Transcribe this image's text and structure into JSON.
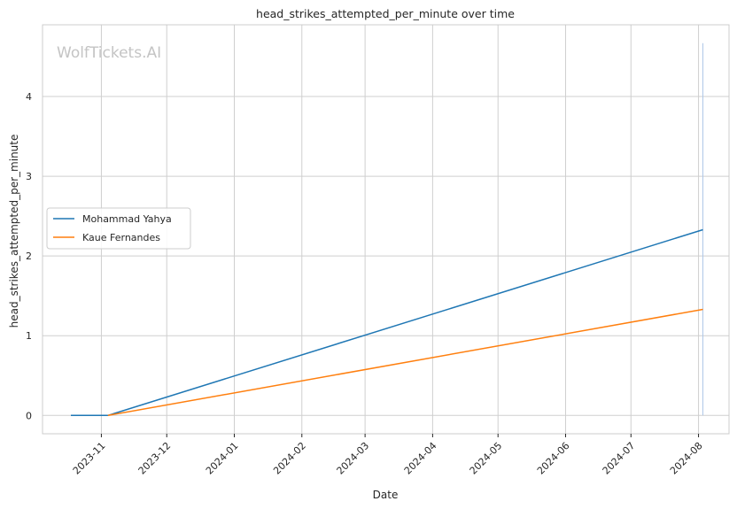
{
  "chart_data": {
    "type": "line",
    "title": "head_strikes_attempted_per_minute over time",
    "xlabel": "Date",
    "ylabel": "head_strikes_attempted_per_minute",
    "watermark": "WolfTickets.AI",
    "x_ticks": [
      "2023-11",
      "2023-12",
      "2024-01",
      "2024-02",
      "2024-03",
      "2024-04",
      "2024-05",
      "2024-06",
      "2024-07",
      "2024-08"
    ],
    "y_ticks": [
      "0",
      "1",
      "2",
      "3",
      "4"
    ],
    "xlim": [
      "2023-10-05",
      "2024-08-15"
    ],
    "ylim": [
      -0.23,
      4.9
    ],
    "grid": true,
    "legend_position": "center-left",
    "series": [
      {
        "name": "Mohammad Yahya",
        "color": "#1f77b4",
        "x": [
          "2023-10-18",
          "2023-11-04",
          "2024-08-03"
        ],
        "y": [
          0,
          0,
          2.33
        ]
      },
      {
        "name": "Kaue Fernandes",
        "color": "#ff7f0e",
        "x": [
          "2023-11-04",
          "2024-08-03"
        ],
        "y": [
          0,
          1.33
        ]
      }
    ],
    "annotations": [
      {
        "type": "vertical-line",
        "x": "2024-08-03",
        "y_range": [
          0,
          4.67
        ],
        "color": "#aec7e8"
      }
    ]
  }
}
